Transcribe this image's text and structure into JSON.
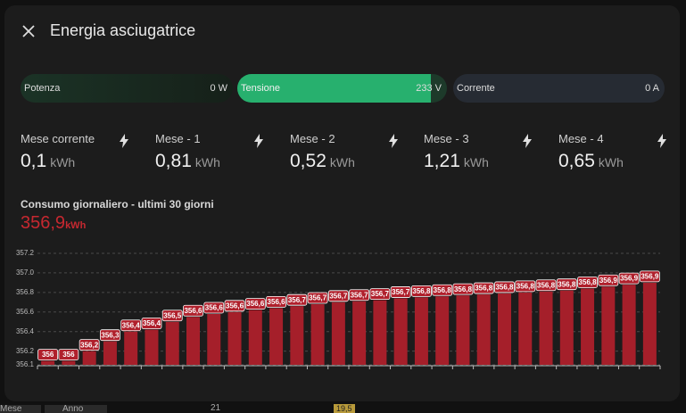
{
  "dialog": {
    "title": "Energia asciugatrice",
    "sensors": [
      {
        "label": "Potenza",
        "value": "0 W"
      },
      {
        "label": "Tensione",
        "value": "233 V"
      },
      {
        "label": "Corrente",
        "value": "0 A"
      }
    ],
    "stats": [
      {
        "name": "Mese corrente",
        "value": "0,1",
        "unit": "kWh"
      },
      {
        "name": "Mese - 1",
        "value": "0,81",
        "unit": "kWh"
      },
      {
        "name": "Mese - 2",
        "value": "0,52",
        "unit": "kWh"
      },
      {
        "name": "Mese - 3",
        "value": "1,21",
        "unit": "kWh"
      },
      {
        "name": "Mese - 4",
        "value": "0,65",
        "unit": "kWh"
      }
    ]
  },
  "chart_data": {
    "type": "bar",
    "title": "Consumo giornaliero - ultimi 30 giorni",
    "total": "356,9",
    "total_unit": "kWh",
    "color": "#a51f2a",
    "grid": true,
    "categories": [
      null,
      null,
      null,
      null,
      null,
      null,
      null,
      null,
      null,
      null,
      null,
      null,
      null,
      null,
      null,
      null,
      null,
      null,
      null,
      null,
      null,
      null,
      null,
      null,
      null,
      null,
      null,
      null,
      null,
      null
    ],
    "values": [
      356.1,
      356.1,
      356.2,
      356.3,
      356.4,
      356.42,
      356.5,
      356.55,
      356.58,
      356.6,
      356.62,
      356.64,
      356.66,
      356.68,
      356.7,
      356.71,
      356.72,
      356.74,
      356.75,
      356.76,
      356.77,
      356.78,
      356.79,
      356.8,
      356.81,
      356.82,
      356.84,
      356.86,
      356.88,
      356.9
    ],
    "value_labels": [
      "356",
      "356",
      "356,2",
      "356,3",
      "356,4",
      "356,4",
      "356,5",
      "356,6",
      "356,6",
      "356,6",
      "356,6",
      "356,6",
      "356,7",
      "356,7",
      "356,7",
      "356,7",
      "356,7",
      "356,7",
      "356,8",
      "356,8",
      "356,8",
      "356,8",
      "356,8",
      "356,8",
      "356,8",
      "356,8",
      "356,8",
      "356,9",
      "356,9",
      "356,9"
    ],
    "ylim": [
      356.06,
      357.2
    ],
    "yticks": [
      {
        "value": 356.06,
        "label": "356.1"
      },
      356.2,
      356.4,
      356.6,
      356.8,
      {
        "value": 357,
        "label": "357.0"
      },
      357.2
    ]
  },
  "background": {
    "tabs": [
      "Mese",
      "Anno"
    ],
    "tick": "21",
    "badge": "19,5"
  }
}
